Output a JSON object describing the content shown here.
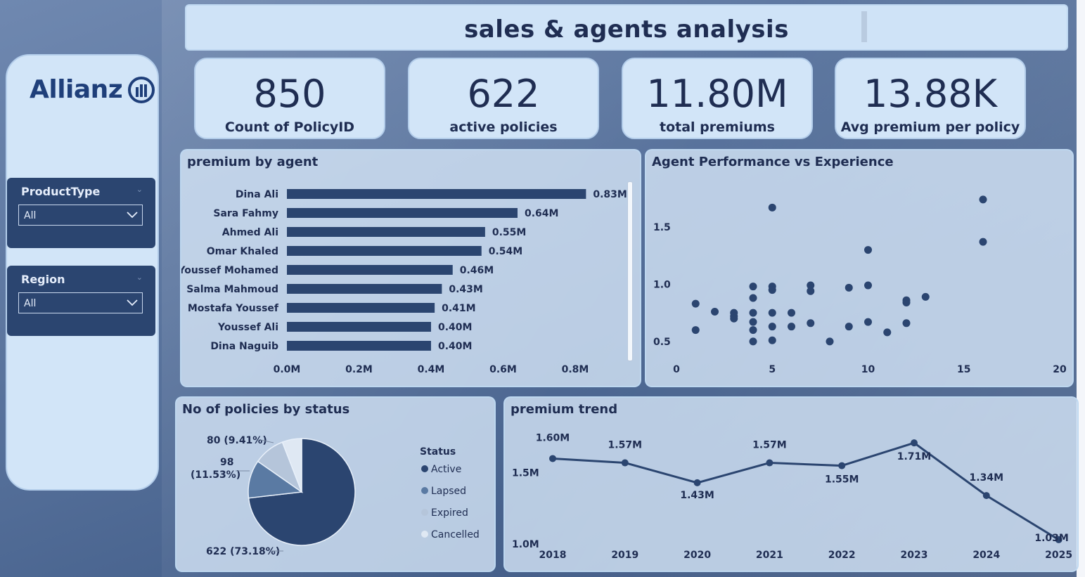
{
  "header": {
    "title": "sales & agents analysis"
  },
  "brand": {
    "logo_text": "Allianz"
  },
  "filters": [
    {
      "label": "ProductType",
      "value": "All"
    },
    {
      "label": "Region",
      "value": "All"
    }
  ],
  "kpis": [
    {
      "value": "850",
      "label": "Count of PolicyID"
    },
    {
      "value": "622",
      "label": "active policies"
    },
    {
      "value": "11.80M",
      "label": "total premiums"
    },
    {
      "value": "13.88K",
      "label": "Avg premium per policy"
    }
  ],
  "colors": {
    "primary": "#2b4570",
    "panel": "#d6e6f8",
    "text": "#1f2d52"
  },
  "chart_data": [
    {
      "type": "bar",
      "title": "premium by agent",
      "orientation": "horizontal",
      "categories": [
        "Dina Ali",
        "Sara Fahmy",
        "Ahmed Ali",
        "Omar Khaled",
        "Youssef Mohamed",
        "Salma Mahmoud",
        "Mostafa Youssef",
        "Youssef Ali",
        "Dina Naguib"
      ],
      "values": [
        0.83,
        0.64,
        0.55,
        0.54,
        0.46,
        0.43,
        0.41,
        0.4,
        0.4
      ],
      "data_labels": [
        "0.83M",
        "0.64M",
        "0.55M",
        "0.54M",
        "0.46M",
        "0.43M",
        "0.41M",
        "0.40M",
        "0.40M"
      ],
      "x_ticks": [
        "0.0M",
        "0.2M",
        "0.4M",
        "0.6M",
        "0.8M"
      ],
      "xlim": [
        0,
        0.95
      ]
    },
    {
      "type": "scatter",
      "title": "Agent Performance vs Experience",
      "x_ticks": [
        "0",
        "5",
        "10",
        "15",
        "20"
      ],
      "y_ticks": [
        "0.5",
        "1.0",
        "1.5"
      ],
      "xlim": [
        0,
        20
      ],
      "ylim": [
        0.45,
        1.85
      ],
      "points": [
        [
          1,
          0.6
        ],
        [
          1,
          0.83
        ],
        [
          2,
          0.76
        ],
        [
          3,
          0.75
        ],
        [
          3,
          0.72
        ],
        [
          3,
          0.7
        ],
        [
          4,
          0.98
        ],
        [
          4,
          0.88
        ],
        [
          4,
          0.75
        ],
        [
          4,
          0.67
        ],
        [
          4,
          0.6
        ],
        [
          4,
          0.5
        ],
        [
          5,
          1.67
        ],
        [
          5,
          0.98
        ],
        [
          5,
          0.95
        ],
        [
          5,
          0.75
        ],
        [
          5,
          0.63
        ],
        [
          5,
          0.51
        ],
        [
          6,
          0.75
        ],
        [
          6,
          0.63
        ],
        [
          7,
          0.99
        ],
        [
          7,
          0.94
        ],
        [
          7,
          0.66
        ],
        [
          8,
          0.5
        ],
        [
          9,
          0.97
        ],
        [
          9,
          0.63
        ],
        [
          10,
          1.3
        ],
        [
          10,
          0.99
        ],
        [
          10,
          0.67
        ],
        [
          11,
          0.58
        ],
        [
          12,
          0.86
        ],
        [
          12,
          0.84
        ],
        [
          12,
          0.66
        ],
        [
          13,
          0.89
        ],
        [
          16,
          1.74
        ],
        [
          16,
          1.37
        ]
      ]
    },
    {
      "type": "pie",
      "title": "No of policies by status",
      "legend_title": "Status",
      "legend": [
        "Active",
        "Lapsed",
        "Expired",
        "Cancelled"
      ],
      "values": [
        622,
        98,
        80,
        50
      ],
      "labels": [
        "622 (73.18%)",
        "98",
        "(11.53%)",
        "80 (9.41%)"
      ],
      "colors": [
        "#2b4570",
        "#5a7aa3",
        "#b5c5da",
        "#dfe8f3"
      ]
    },
    {
      "type": "line",
      "title": "premium trend",
      "x": [
        "2018",
        "2019",
        "2020",
        "2021",
        "2022",
        "2023",
        "2024",
        "2025"
      ],
      "values": [
        1.6,
        1.57,
        1.43,
        1.57,
        1.55,
        1.71,
        1.34,
        1.03
      ],
      "data_labels": [
        "1.60M",
        "1.57M",
        "1.43M",
        "1.57M",
        "1.55M",
        "1.71M",
        "1.34M",
        "1.03M"
      ],
      "y_ticks": [
        "1.0M",
        "1.5M"
      ],
      "ylim": [
        1.0,
        1.78
      ]
    }
  ]
}
